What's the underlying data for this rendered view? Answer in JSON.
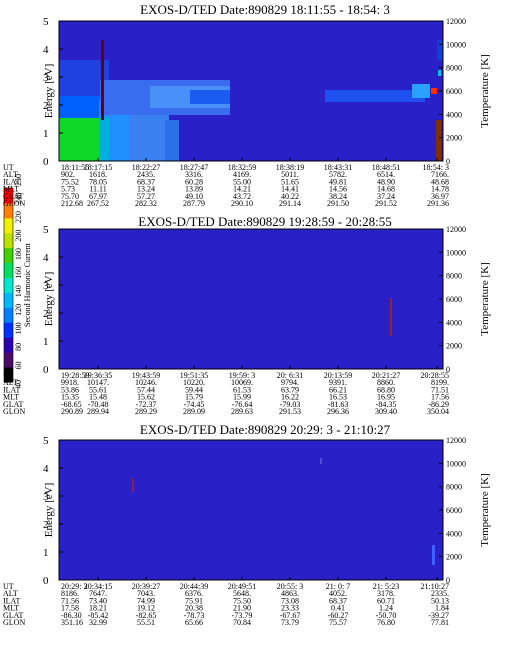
{
  "chart_data": {
    "type": "heatmap",
    "colorbar": {
      "label": "Second Harmonic Current",
      "ticks": [
        "40",
        "60",
        "80",
        "100",
        "120",
        "140",
        "160",
        "180",
        "200",
        "220",
        "240",
        "250"
      ],
      "colors": [
        "#000000",
        "#4a0a6a",
        "#2a00b0",
        "#0030ff",
        "#0080ff",
        "#00b8ff",
        "#00e8d0",
        "#00e060",
        "#40d000",
        "#c0e000",
        "#f0f000",
        "#ff8000",
        "#ff0000"
      ]
    },
    "panels": [
      {
        "title": "EXOS-D/TED   Date:890829  18:11:55 - 18:54: 3",
        "ylabel": "Energy [eV]",
        "y2label": "Temperature [K]",
        "ylim": [
          0,
          5
        ],
        "yticks": [
          "0",
          "1",
          "2",
          "3",
          "4",
          "5"
        ],
        "y2lim": [
          0,
          12000
        ],
        "y2ticks": [
          "0",
          "2000",
          "4000",
          "6000",
          "8000",
          "10000",
          "12000"
        ],
        "table": {
          "rows": [
            "UT",
            "ALT",
            "ILAT",
            "MLT",
            "GLAT",
            "GLON"
          ],
          "columns": [
            [
              "18:11:55",
              "902.",
              "75.52",
              "5.73",
              "75.70",
              "212.68"
            ],
            [
              "18:17:15",
              "1618.",
              "78.05",
              "11.11",
              "67.97",
              "267.52"
            ],
            [
              "18:22:27",
              "2435.",
              "68.37",
              "13.24",
              "57.27",
              "282.32"
            ],
            [
              "18:27:47",
              "3316.",
              "60.28",
              "13.89",
              "49.10",
              "287.79"
            ],
            [
              "18:32:59",
              "4169.",
              "55.00",
              "14.21",
              "43.72",
              "290.10"
            ],
            [
              "18:38:19",
              "5011.",
              "51.65",
              "14.41",
              "40.22",
              "291.14"
            ],
            [
              "18:43:31",
              "5782.",
              "49.81",
              "14.56",
              "38.24",
              "291.50"
            ],
            [
              "18:48:51",
              "6514.",
              "48.90",
              "14.68",
              "37.24",
              "291.52"
            ],
            [
              "18:54: 3",
              "7166.",
              "48.68",
              "14.78",
              "36.97",
              "291.36"
            ]
          ]
        }
      },
      {
        "title": "EXOS-D/TED   Date:890829  19:28:59 - 20:28:55",
        "ylabel": "Energy [eV]",
        "y2label": "Temperature [K]",
        "ylim": [
          0,
          5
        ],
        "yticks": [
          "0",
          "1",
          "2",
          "3",
          "4",
          "5"
        ],
        "y2lim": [
          0,
          12000
        ],
        "y2ticks": [
          "0",
          "2000",
          "4000",
          "6000",
          "8000",
          "10000",
          "12000"
        ],
        "table": {
          "rows": [
            "UT",
            "ALT",
            "ILAT",
            "MLT",
            "GLAT",
            "GLON"
          ],
          "columns": [
            [
              "19:28:59",
              "9918.",
              "53.86",
              "15.35",
              "-68.65",
              "290.89"
            ],
            [
              "19:36:35",
              "10147.",
              "55.61",
              "15.48",
              "-70.48",
              "289.94"
            ],
            [
              "19:43:59",
              "10246.",
              "57.44",
              "15.62",
              "-72.37",
              "289.29"
            ],
            [
              "19:51:35",
              "10220.",
              "59.44",
              "15.79",
              "-74.45",
              "289.09"
            ],
            [
              "19:59: 3",
              "10069.",
              "61.53",
              "15.99",
              "-76.64",
              "289.63"
            ],
            [
              "20: 6:31",
              "9794.",
              "63.79",
              "16.22",
              "-79.03",
              "291.53"
            ],
            [
              "20:13:59",
              "9391.",
              "66.21",
              "16.53",
              "-81.63",
              "296.36"
            ],
            [
              "20:21:27",
              "8860.",
              "68.80",
              "16.95",
              "-84.35",
              "309.40"
            ],
            [
              "20:28:55",
              "8199.",
              "71.51",
              "17.56",
              "-86.29",
              "350.04"
            ]
          ]
        }
      },
      {
        "title": "EXOS-D/TED   Date:890829  20:29: 3 - 21:10:27",
        "ylabel": "Energy [eV]",
        "y2label": "Temperature [K]",
        "ylim": [
          0,
          5
        ],
        "yticks": [
          "0",
          "1",
          "2",
          "3",
          "4",
          "5"
        ],
        "y2lim": [
          0,
          12000
        ],
        "y2ticks": [
          "0",
          "2000",
          "4000",
          "6000",
          "8000",
          "10000",
          "12000"
        ],
        "table": {
          "rows": [
            "UT",
            "ALT",
            "ILAT",
            "MLT",
            "GLAT",
            "GLON"
          ],
          "columns": [
            [
              "20:29: 3",
              "8186.",
              "71.56",
              "17.58",
              "-86.30",
              "351.16"
            ],
            [
              "20:34:15",
              "7647.",
              "73.40",
              "18.21",
              "-85.42",
              "32.99"
            ],
            [
              "20:39:27",
              "7043.",
              "74.99",
              "19.12",
              "-82.65",
              "55.51"
            ],
            [
              "20:44:39",
              "6376.",
              "75.91",
              "20.38",
              "-78.73",
              "65.66"
            ],
            [
              "20:49:51",
              "5648.",
              "75.50",
              "21.90",
              "-73.79",
              "70.84"
            ],
            [
              "20:55: 3",
              "4863.",
              "73.08",
              "23.33",
              "-67.67",
              "73.79"
            ],
            [
              "21: 0: 7",
              "4052.",
              "68.37",
              "0.41",
              "-60.27",
              "75.57"
            ],
            [
              "21: 5:23",
              "3178.",
              "60.71",
              "1.24",
              "-50.70",
              "76.80"
            ],
            [
              "21:10:27",
              "2335.",
              "50.13",
              "1.84",
              "-39.27",
              "77.81"
            ]
          ]
        }
      }
    ]
  }
}
